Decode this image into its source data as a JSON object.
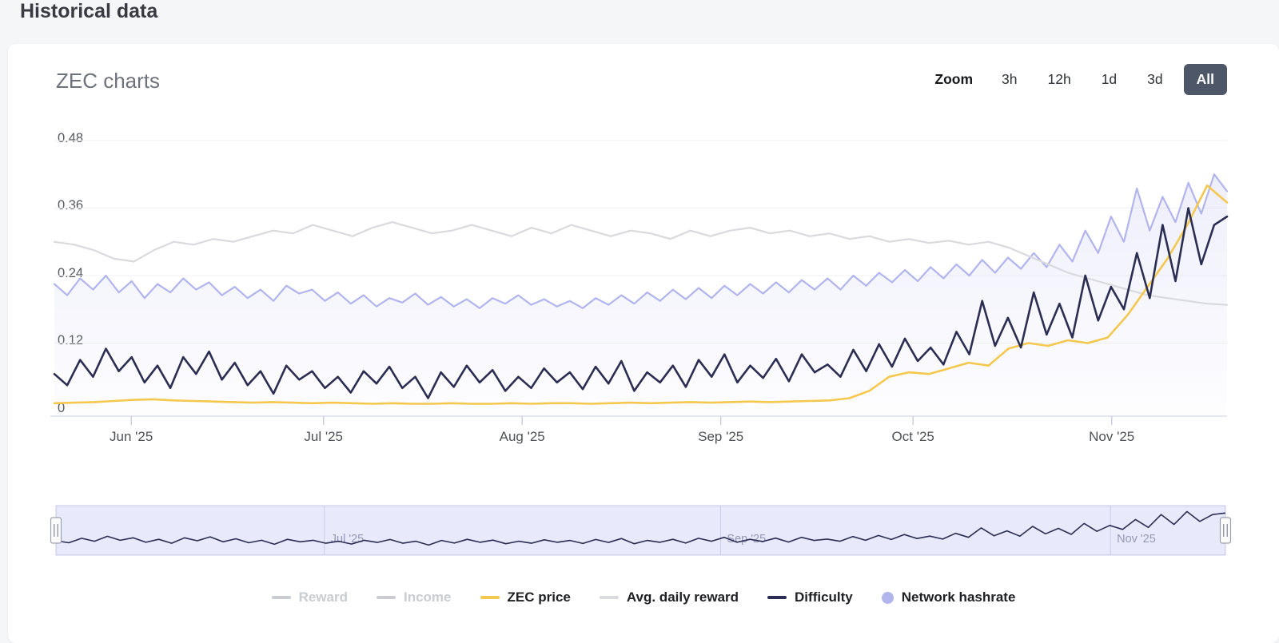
{
  "page": {
    "title": "Historical data"
  },
  "card": {
    "title": "ZEC charts"
  },
  "zoom": {
    "label": "Zoom",
    "options": [
      "3h",
      "12h",
      "1d",
      "3d",
      "All"
    ],
    "selected": "All"
  },
  "chart_data": {
    "type": "line",
    "title": "ZEC charts",
    "x_domain_days": 183,
    "xaxis": {
      "ticks": [
        {
          "day": 12,
          "label": "Jun '25"
        },
        {
          "day": 42,
          "label": "Jul '25"
        },
        {
          "day": 73,
          "label": "Aug '25"
        },
        {
          "day": 104,
          "label": "Sep '25"
        },
        {
          "day": 134,
          "label": "Oct '25"
        },
        {
          "day": 165,
          "label": "Nov '25"
        }
      ]
    },
    "yaxis": {
      "min": 0,
      "max": 0.48,
      "grid": true,
      "tick_labels": [
        "0",
        "0.12",
        "0.24",
        "0.36",
        "0.48"
      ],
      "tick_values": [
        0,
        0.12,
        0.24,
        0.36,
        0.48
      ]
    },
    "series": [
      {
        "name": "Reward",
        "visible": false,
        "color": "#c9ccd1",
        "values": []
      },
      {
        "name": "Income",
        "visible": false,
        "color": "#c9ccd1",
        "values": []
      },
      {
        "name": "ZEC price",
        "visible": true,
        "color": "#f4c84e",
        "line_width": 2.6,
        "values": [
          0.013,
          0.014,
          0.015,
          0.017,
          0.019,
          0.02,
          0.018,
          0.017,
          0.016,
          0.015,
          0.014,
          0.015,
          0.014,
          0.013,
          0.014,
          0.013,
          0.012,
          0.013,
          0.012,
          0.012,
          0.013,
          0.012,
          0.012,
          0.013,
          0.012,
          0.013,
          0.013,
          0.012,
          0.013,
          0.014,
          0.013,
          0.014,
          0.015,
          0.014,
          0.015,
          0.016,
          0.015,
          0.016,
          0.017,
          0.018,
          0.022,
          0.035,
          0.06,
          0.068,
          0.065,
          0.075,
          0.085,
          0.08,
          0.11,
          0.12,
          0.115,
          0.125,
          0.12,
          0.13,
          0.17,
          0.22,
          0.27,
          0.33,
          0.4,
          0.37
        ]
      },
      {
        "name": "Avg. daily reward",
        "visible": true,
        "color": "#d9dade",
        "line_width": 2.2,
        "values": [
          0.3,
          0.295,
          0.285,
          0.27,
          0.265,
          0.285,
          0.3,
          0.295,
          0.305,
          0.3,
          0.31,
          0.32,
          0.315,
          0.33,
          0.32,
          0.31,
          0.325,
          0.335,
          0.325,
          0.315,
          0.32,
          0.33,
          0.32,
          0.31,
          0.325,
          0.315,
          0.33,
          0.32,
          0.31,
          0.32,
          0.315,
          0.305,
          0.32,
          0.31,
          0.32,
          0.325,
          0.315,
          0.32,
          0.31,
          0.315,
          0.305,
          0.31,
          0.3,
          0.305,
          0.298,
          0.302,
          0.295,
          0.3,
          0.29,
          0.275,
          0.26,
          0.245,
          0.235,
          0.225,
          0.215,
          0.205,
          0.2,
          0.195,
          0.19,
          0.188
        ]
      },
      {
        "name": "Difficulty",
        "visible": true,
        "color": "#2b2d52",
        "line_width": 2.6,
        "values": [
          0.065,
          0.045,
          0.09,
          0.06,
          0.11,
          0.07,
          0.095,
          0.05,
          0.08,
          0.04,
          0.095,
          0.065,
          0.105,
          0.055,
          0.085,
          0.045,
          0.07,
          0.03,
          0.08,
          0.055,
          0.07,
          0.04,
          0.06,
          0.032,
          0.07,
          0.048,
          0.078,
          0.04,
          0.06,
          0.022,
          0.068,
          0.042,
          0.08,
          0.05,
          0.072,
          0.035,
          0.06,
          0.04,
          0.075,
          0.05,
          0.068,
          0.038,
          0.078,
          0.048,
          0.088,
          0.035,
          0.068,
          0.05,
          0.08,
          0.042,
          0.09,
          0.06,
          0.1,
          0.05,
          0.08,
          0.058,
          0.092,
          0.052,
          0.1,
          0.068,
          0.082,
          0.06,
          0.108,
          0.07,
          0.118,
          0.078,
          0.128,
          0.088,
          0.112,
          0.082,
          0.14,
          0.1,
          0.195,
          0.115,
          0.165,
          0.112,
          0.21,
          0.135,
          0.19,
          0.13,
          0.24,
          0.16,
          0.22,
          0.18,
          0.28,
          0.2,
          0.33,
          0.23,
          0.36,
          0.26,
          0.33,
          0.345
        ]
      },
      {
        "name": "Network hashrate",
        "visible": true,
        "color": "#b2b4ee",
        "line_width": 2.2,
        "area_fill": true,
        "values": [
          0.225,
          0.205,
          0.235,
          0.215,
          0.24,
          0.21,
          0.23,
          0.2,
          0.225,
          0.21,
          0.235,
          0.215,
          0.228,
          0.205,
          0.22,
          0.2,
          0.215,
          0.195,
          0.222,
          0.208,
          0.215,
          0.195,
          0.21,
          0.19,
          0.205,
          0.185,
          0.2,
          0.192,
          0.208,
          0.188,
          0.202,
          0.185,
          0.198,
          0.182,
          0.2,
          0.19,
          0.205,
          0.188,
          0.198,
          0.185,
          0.195,
          0.182,
          0.2,
          0.188,
          0.205,
          0.19,
          0.21,
          0.195,
          0.215,
          0.198,
          0.218,
          0.2,
          0.222,
          0.205,
          0.225,
          0.208,
          0.228,
          0.21,
          0.232,
          0.215,
          0.235,
          0.215,
          0.24,
          0.222,
          0.245,
          0.228,
          0.25,
          0.23,
          0.255,
          0.235,
          0.26,
          0.24,
          0.268,
          0.245,
          0.272,
          0.252,
          0.28,
          0.255,
          0.295,
          0.265,
          0.32,
          0.28,
          0.345,
          0.3,
          0.395,
          0.32,
          0.38,
          0.335,
          0.405,
          0.35,
          0.42,
          0.39
        ]
      }
    ],
    "legend": [
      {
        "label": "Reward",
        "color": "#c9ccd1",
        "marker": "line",
        "enabled": false
      },
      {
        "label": "Income",
        "color": "#c9ccd1",
        "marker": "line",
        "enabled": false
      },
      {
        "label": "ZEC price",
        "color": "#f4c84e",
        "marker": "line",
        "enabled": true
      },
      {
        "label": "Avg. daily reward",
        "color": "#d9dade",
        "marker": "line",
        "enabled": true
      },
      {
        "label": "Difficulty",
        "color": "#2b2d52",
        "marker": "line",
        "enabled": true
      },
      {
        "label": "Network hashrate",
        "color": "#b2b4ee",
        "marker": "circle",
        "enabled": true
      }
    ],
    "navigator": {
      "series": "Difficulty",
      "mask_color": "#b8bbf0",
      "ticks": [
        {
          "day": 42,
          "label": "Jul '25"
        },
        {
          "day": 104,
          "label": "Sep '25"
        },
        {
          "day": 165,
          "label": "Nov '25"
        }
      ]
    }
  }
}
